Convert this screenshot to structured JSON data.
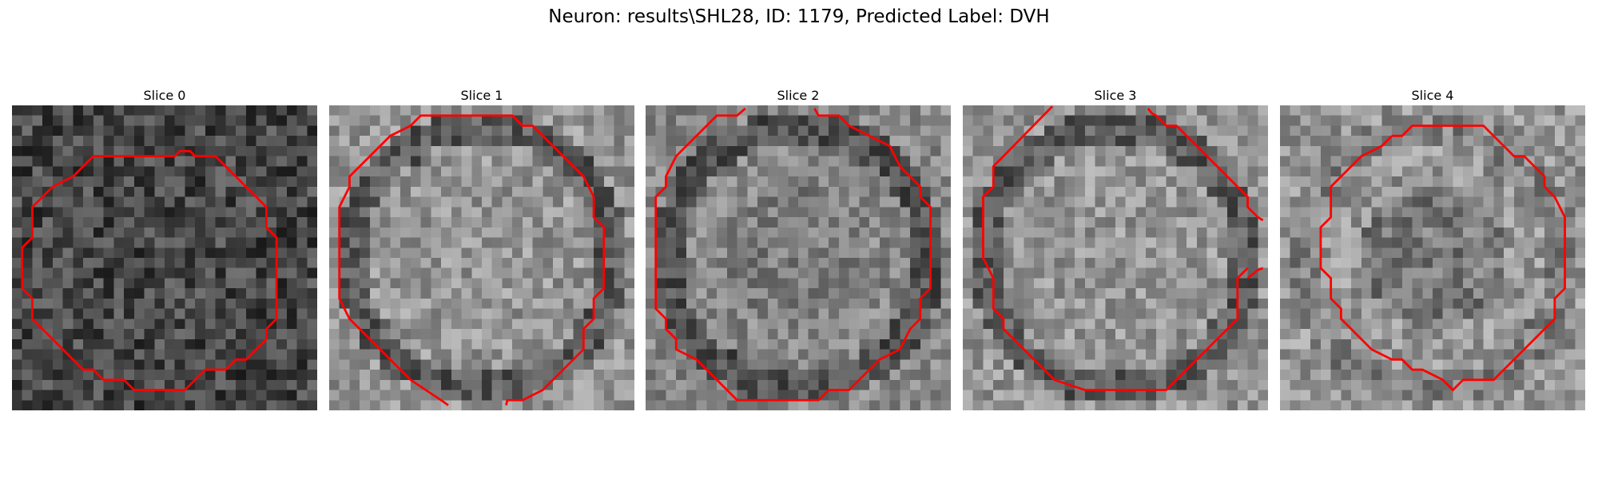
{
  "figure": {
    "title": "Neuron: results\\SHL28, ID: 1179, Predicted Label: DVH"
  },
  "panels": [
    {
      "title": "Slice 0",
      "seed": 11,
      "style": "dark"
    },
    {
      "title": "Slice 1",
      "seed": 23,
      "style": "light-ring"
    },
    {
      "title": "Slice 2",
      "seed": 37,
      "style": "ring"
    },
    {
      "title": "Slice 3",
      "seed": 53,
      "style": "light-ring"
    },
    {
      "title": "Slice 4",
      "seed": 71,
      "style": "light"
    }
  ],
  "colors": {
    "contour": "#ff0000"
  }
}
